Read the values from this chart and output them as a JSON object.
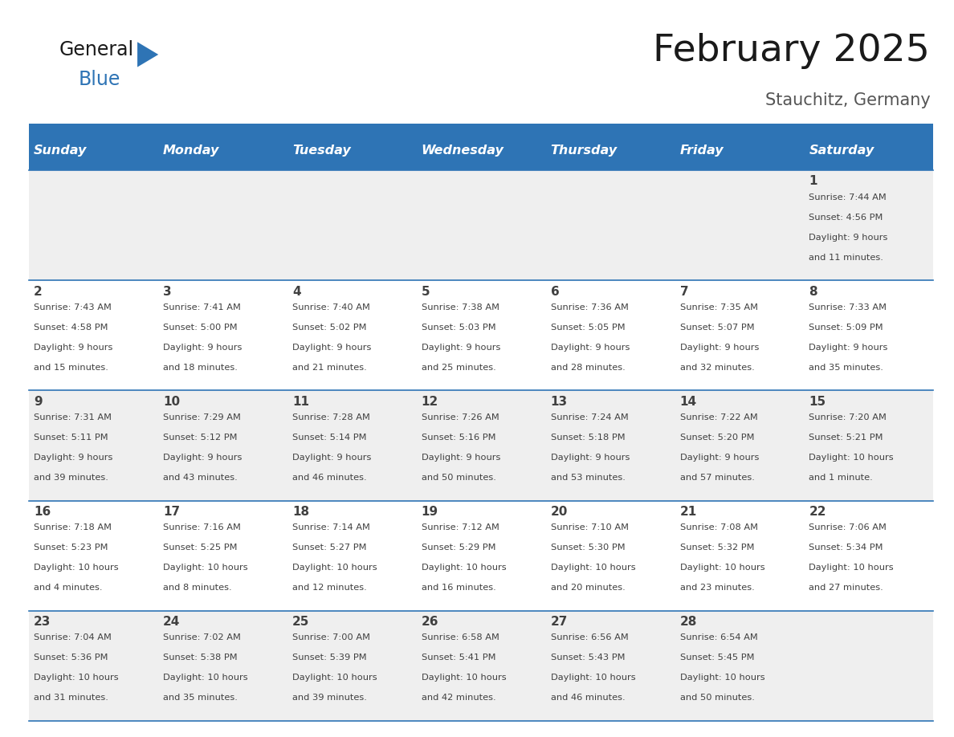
{
  "title": "February 2025",
  "subtitle": "Stauchitz, Germany",
  "days_of_week": [
    "Sunday",
    "Monday",
    "Tuesday",
    "Wednesday",
    "Thursday",
    "Friday",
    "Saturday"
  ],
  "header_bg": "#2E74B5",
  "header_text_color": "#FFFFFF",
  "cell_bg_white": "#FFFFFF",
  "cell_bg_gray": "#EFEFEF",
  "border_color": "#2E74B5",
  "text_color": "#404040",
  "title_color": "#1A1A1A",
  "subtitle_color": "#555555",
  "logo_color_general": "#1A1A1A",
  "logo_color_blue": "#2E74B5",
  "calendar_data": [
    [
      {
        "day": null,
        "info": null
      },
      {
        "day": null,
        "info": null
      },
      {
        "day": null,
        "info": null
      },
      {
        "day": null,
        "info": null
      },
      {
        "day": null,
        "info": null
      },
      {
        "day": null,
        "info": null
      },
      {
        "day": 1,
        "info": "Sunrise: 7:44 AM\nSunset: 4:56 PM\nDaylight: 9 hours\nand 11 minutes."
      }
    ],
    [
      {
        "day": 2,
        "info": "Sunrise: 7:43 AM\nSunset: 4:58 PM\nDaylight: 9 hours\nand 15 minutes."
      },
      {
        "day": 3,
        "info": "Sunrise: 7:41 AM\nSunset: 5:00 PM\nDaylight: 9 hours\nand 18 minutes."
      },
      {
        "day": 4,
        "info": "Sunrise: 7:40 AM\nSunset: 5:02 PM\nDaylight: 9 hours\nand 21 minutes."
      },
      {
        "day": 5,
        "info": "Sunrise: 7:38 AM\nSunset: 5:03 PM\nDaylight: 9 hours\nand 25 minutes."
      },
      {
        "day": 6,
        "info": "Sunrise: 7:36 AM\nSunset: 5:05 PM\nDaylight: 9 hours\nand 28 minutes."
      },
      {
        "day": 7,
        "info": "Sunrise: 7:35 AM\nSunset: 5:07 PM\nDaylight: 9 hours\nand 32 minutes."
      },
      {
        "day": 8,
        "info": "Sunrise: 7:33 AM\nSunset: 5:09 PM\nDaylight: 9 hours\nand 35 minutes."
      }
    ],
    [
      {
        "day": 9,
        "info": "Sunrise: 7:31 AM\nSunset: 5:11 PM\nDaylight: 9 hours\nand 39 minutes."
      },
      {
        "day": 10,
        "info": "Sunrise: 7:29 AM\nSunset: 5:12 PM\nDaylight: 9 hours\nand 43 minutes."
      },
      {
        "day": 11,
        "info": "Sunrise: 7:28 AM\nSunset: 5:14 PM\nDaylight: 9 hours\nand 46 minutes."
      },
      {
        "day": 12,
        "info": "Sunrise: 7:26 AM\nSunset: 5:16 PM\nDaylight: 9 hours\nand 50 minutes."
      },
      {
        "day": 13,
        "info": "Sunrise: 7:24 AM\nSunset: 5:18 PM\nDaylight: 9 hours\nand 53 minutes."
      },
      {
        "day": 14,
        "info": "Sunrise: 7:22 AM\nSunset: 5:20 PM\nDaylight: 9 hours\nand 57 minutes."
      },
      {
        "day": 15,
        "info": "Sunrise: 7:20 AM\nSunset: 5:21 PM\nDaylight: 10 hours\nand 1 minute."
      }
    ],
    [
      {
        "day": 16,
        "info": "Sunrise: 7:18 AM\nSunset: 5:23 PM\nDaylight: 10 hours\nand 4 minutes."
      },
      {
        "day": 17,
        "info": "Sunrise: 7:16 AM\nSunset: 5:25 PM\nDaylight: 10 hours\nand 8 minutes."
      },
      {
        "day": 18,
        "info": "Sunrise: 7:14 AM\nSunset: 5:27 PM\nDaylight: 10 hours\nand 12 minutes."
      },
      {
        "day": 19,
        "info": "Sunrise: 7:12 AM\nSunset: 5:29 PM\nDaylight: 10 hours\nand 16 minutes."
      },
      {
        "day": 20,
        "info": "Sunrise: 7:10 AM\nSunset: 5:30 PM\nDaylight: 10 hours\nand 20 minutes."
      },
      {
        "day": 21,
        "info": "Sunrise: 7:08 AM\nSunset: 5:32 PM\nDaylight: 10 hours\nand 23 minutes."
      },
      {
        "day": 22,
        "info": "Sunrise: 7:06 AM\nSunset: 5:34 PM\nDaylight: 10 hours\nand 27 minutes."
      }
    ],
    [
      {
        "day": 23,
        "info": "Sunrise: 7:04 AM\nSunset: 5:36 PM\nDaylight: 10 hours\nand 31 minutes."
      },
      {
        "day": 24,
        "info": "Sunrise: 7:02 AM\nSunset: 5:38 PM\nDaylight: 10 hours\nand 35 minutes."
      },
      {
        "day": 25,
        "info": "Sunrise: 7:00 AM\nSunset: 5:39 PM\nDaylight: 10 hours\nand 39 minutes."
      },
      {
        "day": 26,
        "info": "Sunrise: 6:58 AM\nSunset: 5:41 PM\nDaylight: 10 hours\nand 42 minutes."
      },
      {
        "day": 27,
        "info": "Sunrise: 6:56 AM\nSunset: 5:43 PM\nDaylight: 10 hours\nand 46 minutes."
      },
      {
        "day": 28,
        "info": "Sunrise: 6:54 AM\nSunset: 5:45 PM\nDaylight: 10 hours\nand 50 minutes."
      },
      {
        "day": null,
        "info": null
      }
    ]
  ],
  "figsize": [
    11.88,
    9.18
  ],
  "dpi": 100
}
